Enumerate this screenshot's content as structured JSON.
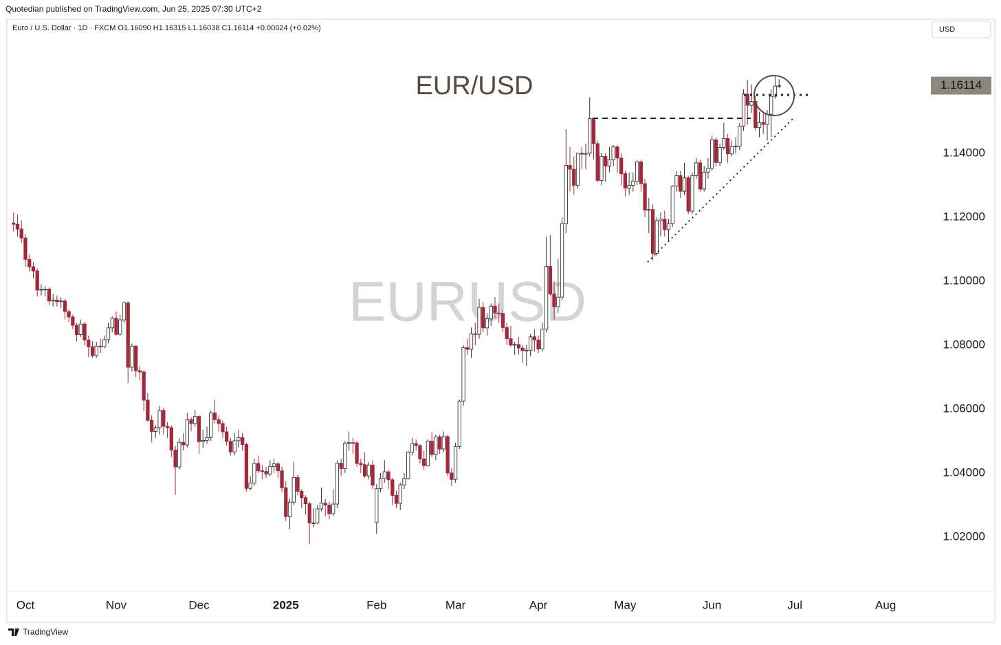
{
  "published": "Quotedian published on TradingView.com, Jun 25, 2025 07:30 UTC+2",
  "currency_button": "USD",
  "branding": "TradingView",
  "chart_data": {
    "type": "candlestick",
    "header": "Euro / U.S. Dollar · 1D · FXCM  O1.16090  H1.16315  L1.16038  C1.16114  +0.00024 (+0.02%)",
    "title": "EUR/USD",
    "watermark": "EURUSD",
    "last_value_label": "1.16114",
    "up_color": "#ffffff",
    "down_color": "#a3283c",
    "outline_color": "#333333",
    "xlim": [
      -1.7,
      230.9
    ],
    "xticks": [
      {
        "value": 3,
        "label": "Oct"
      },
      {
        "value": 26,
        "label": "Nov"
      },
      {
        "value": 47,
        "label": "Dec"
      },
      {
        "value": 69,
        "label": "2025"
      },
      {
        "value": 92,
        "label": "Feb"
      },
      {
        "value": 112,
        "label": "Mar"
      },
      {
        "value": 133,
        "label": "Apr"
      },
      {
        "value": 155,
        "label": "May"
      },
      {
        "value": 177,
        "label": "Jun"
      },
      {
        "value": 198,
        "label": "Jul"
      },
      {
        "value": 221,
        "label": "Aug"
      }
    ],
    "ylim": [
      1.003,
      1.1819
    ],
    "yticks": [
      {
        "value": 1.02,
        "label": "1.02000"
      },
      {
        "value": 1.04,
        "label": "1.04000"
      },
      {
        "value": 1.06,
        "label": "1.06000"
      },
      {
        "value": 1.08,
        "label": "1.08000"
      },
      {
        "value": 1.1,
        "label": "1.10000"
      },
      {
        "value": 1.12,
        "label": "1.12000"
      },
      {
        "value": 1.14,
        "label": "1.14000"
      }
    ],
    "open": [
      1.1182,
      1.1178,
      1.1163,
      1.1135,
      1.1068,
      1.1045,
      1.1032,
      1.0972,
      1.0975,
      1.0975,
      1.0938,
      1.0941,
      1.0936,
      1.0938,
      1.0905,
      1.0888,
      1.0862,
      1.0833,
      1.0866,
      1.0816,
      1.0795,
      1.0767,
      1.0797,
      1.0795,
      1.0817,
      1.0854,
      1.0884,
      1.0834,
      1.0879,
      1.0932,
      1.0731,
      1.0797,
      1.072,
      1.0716,
      1.0628,
      1.0565,
      1.053,
      1.0542,
      1.0596,
      1.0546,
      1.0542,
      1.0472,
      1.0419,
      1.0496,
      1.0488,
      1.0567,
      1.0555,
      1.0577,
      1.0498,
      1.0502,
      1.0511,
      1.0588,
      1.0567,
      1.0555,
      1.0529,
      1.0499,
      1.0466,
      1.0501,
      1.0511,
      1.0489,
      1.0352,
      1.0369,
      1.043,
      1.0407,
      1.0405,
      1.0397,
      1.042,
      1.0429,
      1.0407,
      1.0354,
      1.0264,
      1.0309,
      1.0386,
      1.0343,
      1.0323,
      1.0304,
      1.0244,
      1.0244,
      1.0288,
      1.0306,
      1.03,
      1.0273,
      1.0303,
      1.0431,
      1.0414,
      1.0493,
      1.0495,
      1.0494,
      1.043,
      1.0426,
      1.0391,
      1.0425,
      1.0245,
      1.0351,
      1.0383,
      1.0404,
      1.0379,
      1.033,
      1.0305,
      1.0363,
      1.0383,
      1.0465,
      1.0492,
      1.0486,
      1.0444,
      1.0423,
      1.05,
      1.0458,
      1.0513,
      1.0475,
      1.0514,
      1.04,
      1.038,
      1.0483,
      1.0625,
      1.0792,
      1.0787,
      1.0835,
      1.0834,
      1.0918,
      1.0854,
      1.0882,
      1.0922,
      1.09,
      1.0899,
      1.0855,
      1.082,
      1.08,
      1.0802,
      1.0791,
      1.0783,
      1.0784,
      1.0826,
      1.0816,
      1.0788,
      1.085,
      1.1046,
      1.096,
      1.092,
      1.095,
      1.118,
      1.1362,
      1.135,
      1.13,
      1.14,
      1.1397,
      1.14,
      1.1508,
      1.143,
      1.1315,
      1.139,
      1.136,
      1.138,
      1.142,
      1.1385,
      1.1336,
      1.1291,
      1.13,
      1.1313,
      1.1373,
      1.1305,
      1.1222,
      1.1224,
      1.1087,
      1.1189,
      1.1194,
      1.1161,
      1.118,
      1.1297,
      1.133,
      1.1281,
      1.1323,
      1.1219,
      1.133,
      1.137,
      1.1288,
      1.1341,
      1.1353,
      1.1442,
      1.1371,
      1.1418,
      1.1446,
      1.1398,
      1.142,
      1.1422,
      1.1485,
      1.1585,
      1.155,
      1.1562,
      1.148,
      1.1496,
      1.149,
      1.1522,
      1.1578,
      1.1609
    ],
    "high": [
      1.1214,
      1.1209,
      1.119,
      1.1147,
      1.1083,
      1.106,
      1.104,
      1.099,
      1.0985,
      1.098,
      1.096,
      1.0955,
      1.095,
      1.0945,
      1.0912,
      1.0895,
      1.087,
      1.088,
      1.0872,
      1.083,
      1.0812,
      1.081,
      1.082,
      1.083,
      1.087,
      1.089,
      1.0905,
      1.0895,
      1.0937,
      1.0937,
      1.0805,
      1.08,
      1.0735,
      1.0722,
      1.065,
      1.058,
      1.055,
      1.061,
      1.0605,
      1.056,
      1.0548,
      1.0485,
      1.051,
      1.0525,
      1.0588,
      1.0575,
      1.0597,
      1.058,
      1.0535,
      1.0545,
      1.0596,
      1.063,
      1.058,
      1.0565,
      1.0545,
      1.051,
      1.0525,
      1.0535,
      1.0525,
      1.0495,
      1.039,
      1.0445,
      1.0455,
      1.0425,
      1.042,
      1.044,
      1.0445,
      1.0435,
      1.042,
      1.0375,
      1.032,
      1.0435,
      1.0395,
      1.035,
      1.033,
      1.031,
      1.029,
      1.03,
      1.0355,
      1.032,
      1.031,
      1.035,
      1.044,
      1.0445,
      1.05,
      1.053,
      1.051,
      1.05,
      1.0445,
      1.0465,
      1.0435,
      1.044,
      1.0365,
      1.04,
      1.044,
      1.041,
      1.0385,
      1.0345,
      1.037,
      1.04,
      1.047,
      1.051,
      1.0505,
      1.049,
      1.047,
      1.0505,
      1.0528,
      1.052,
      1.052,
      1.053,
      1.052,
      1.0415,
      1.0495,
      1.063,
      1.08,
      1.082,
      1.0855,
      1.087,
      1.0945,
      1.0935,
      1.09,
      1.093,
      1.095,
      1.093,
      1.091,
      1.087,
      1.086,
      1.081,
      1.0825,
      1.08,
      1.08,
      1.0835,
      1.085,
      1.083,
      1.087,
      1.114,
      1.1145,
      1.1,
      1.107,
      1.12,
      1.1475,
      1.142,
      1.139,
      1.14,
      1.142,
      1.143,
      1.1575,
      1.151,
      1.144,
      1.14,
      1.14,
      1.142,
      1.1425,
      1.1425,
      1.14,
      1.1345,
      1.134,
      1.134,
      1.138,
      1.138,
      1.132,
      1.126,
      1.124,
      1.12,
      1.1215,
      1.122,
      1.1195,
      1.13,
      1.1345,
      1.1345,
      1.137,
      1.133,
      1.134,
      1.1385,
      1.138,
      1.136,
      1.1385,
      1.1455,
      1.145,
      1.143,
      1.1495,
      1.146,
      1.144,
      1.145,
      1.1495,
      1.16,
      1.163,
      1.1615,
      1.158,
      1.153,
      1.1525,
      1.1535,
      1.16,
      1.164,
      1.16315
    ],
    "low": [
      1.1155,
      1.114,
      1.112,
      1.1045,
      1.103,
      1.1008,
      1.0952,
      1.0955,
      1.0952,
      1.0925,
      1.0922,
      1.092,
      1.0915,
      1.088,
      1.0872,
      1.085,
      1.0811,
      1.0825,
      1.08,
      1.0762,
      1.0761,
      1.076,
      1.0775,
      1.079,
      1.0805,
      1.084,
      1.083,
      1.083,
      1.087,
      1.0682,
      1.0717,
      1.07,
      1.069,
      1.0594,
      1.056,
      1.0496,
      1.051,
      1.052,
      1.052,
      1.051,
      1.045,
      1.0332,
      1.041,
      1.047,
      1.048,
      1.053,
      1.0545,
      1.046,
      1.0478,
      1.0492,
      1.05,
      1.0555,
      1.053,
      1.051,
      1.0485,
      1.0455,
      1.0455,
      1.048,
      1.047,
      1.0342,
      1.0345,
      1.036,
      1.04,
      1.038,
      1.0385,
      1.039,
      1.04,
      1.0385,
      1.034,
      1.025,
      1.0225,
      1.03,
      1.033,
      1.029,
      1.027,
      1.0178,
      1.023,
      1.024,
      1.028,
      1.0265,
      1.0255,
      1.0265,
      1.029,
      1.039,
      1.04,
      1.047,
      1.046,
      1.042,
      1.04,
      1.0385,
      1.038,
      1.035,
      1.021,
      1.034,
      1.037,
      1.035,
      1.03,
      1.029,
      1.0285,
      1.035,
      1.038,
      1.0455,
      1.047,
      1.043,
      1.041,
      1.042,
      1.045,
      1.044,
      1.046,
      1.0465,
      1.039,
      1.036,
      1.037,
      1.0475,
      1.061,
      1.077,
      1.076,
      1.08,
      1.082,
      1.084,
      1.083,
      1.086,
      1.0885,
      1.087,
      1.084,
      1.08,
      1.0795,
      1.077,
      1.077,
      1.0745,
      1.0735,
      1.0765,
      1.078,
      1.0775,
      1.078,
      1.084,
      1.0955,
      1.088,
      1.09,
      1.094,
      1.115,
      1.128,
      1.127,
      1.129,
      1.135,
      1.135,
      1.139,
      1.138,
      1.131,
      1.13,
      1.131,
      1.134,
      1.136,
      1.134,
      1.13,
      1.1265,
      1.127,
      1.128,
      1.13,
      1.128,
      1.12,
      1.115,
      1.1065,
      1.108,
      1.114,
      1.114,
      1.1125,
      1.117,
      1.128,
      1.126,
      1.127,
      1.121,
      1.121,
      1.132,
      1.128,
      1.128,
      1.132,
      1.1345,
      1.136,
      1.136,
      1.141,
      1.137,
      1.139,
      1.14,
      1.141,
      1.147,
      1.149,
      1.1525,
      1.147,
      1.145,
      1.146,
      1.144,
      1.145,
      1.157,
      1.16038
    ],
    "close": [
      1.1178,
      1.1163,
      1.1135,
      1.1068,
      1.1045,
      1.1032,
      1.0972,
      1.0975,
      1.0975,
      1.0938,
      1.0941,
      1.0936,
      1.0938,
      1.0905,
      1.0888,
      1.0862,
      1.0833,
      1.0866,
      1.0816,
      1.0795,
      1.0767,
      1.0797,
      1.0795,
      1.0817,
      1.0854,
      1.0884,
      1.0834,
      1.0879,
      1.0932,
      1.0731,
      1.0797,
      1.072,
      1.0716,
      1.0628,
      1.0565,
      1.053,
      1.0542,
      1.0596,
      1.0546,
      1.0542,
      1.0472,
      1.0419,
      1.0496,
      1.0488,
      1.0567,
      1.0555,
      1.0577,
      1.0498,
      1.0502,
      1.0511,
      1.0588,
      1.0567,
      1.0555,
      1.0529,
      1.0499,
      1.0466,
      1.0501,
      1.0511,
      1.0489,
      1.0352,
      1.0369,
      1.043,
      1.0407,
      1.0405,
      1.0397,
      1.042,
      1.0429,
      1.0407,
      1.0354,
      1.0264,
      1.0309,
      1.0386,
      1.0343,
      1.0323,
      1.0304,
      1.0244,
      1.0244,
      1.0288,
      1.0306,
      1.03,
      1.0273,
      1.0303,
      1.0431,
      1.0414,
      1.0493,
      1.0495,
      1.0494,
      1.043,
      1.0426,
      1.0391,
      1.0425,
      1.0362,
      1.0351,
      1.0383,
      1.0404,
      1.0379,
      1.033,
      1.0305,
      1.0363,
      1.0383,
      1.0465,
      1.0492,
      1.0486,
      1.0444,
      1.0423,
      1.05,
      1.0458,
      1.0513,
      1.0475,
      1.0514,
      1.04,
      1.038,
      1.0483,
      1.0625,
      1.0792,
      1.0787,
      1.0835,
      1.0834,
      1.0918,
      1.0854,
      1.0882,
      1.0922,
      1.09,
      1.0899,
      1.0855,
      1.082,
      1.08,
      1.0802,
      1.0791,
      1.0783,
      1.0784,
      1.0826,
      1.0816,
      1.0788,
      1.085,
      1.1046,
      1.096,
      1.092,
      1.095,
      1.118,
      1.1362,
      1.135,
      1.13,
      1.14,
      1.1397,
      1.14,
      1.1508,
      1.143,
      1.1315,
      1.139,
      1.136,
      1.138,
      1.142,
      1.1385,
      1.1336,
      1.1291,
      1.13,
      1.1313,
      1.1373,
      1.1305,
      1.1222,
      1.1224,
      1.1087,
      1.1189,
      1.1194,
      1.1161,
      1.118,
      1.1297,
      1.133,
      1.1281,
      1.1323,
      1.1219,
      1.133,
      1.137,
      1.1288,
      1.1341,
      1.1353,
      1.1442,
      1.1371,
      1.1418,
      1.1446,
      1.1398,
      1.142,
      1.1422,
      1.1485,
      1.1585,
      1.155,
      1.1562,
      1.148,
      1.1496,
      1.149,
      1.1522,
      1.1578,
      1.161,
      1.16114
    ]
  }
}
